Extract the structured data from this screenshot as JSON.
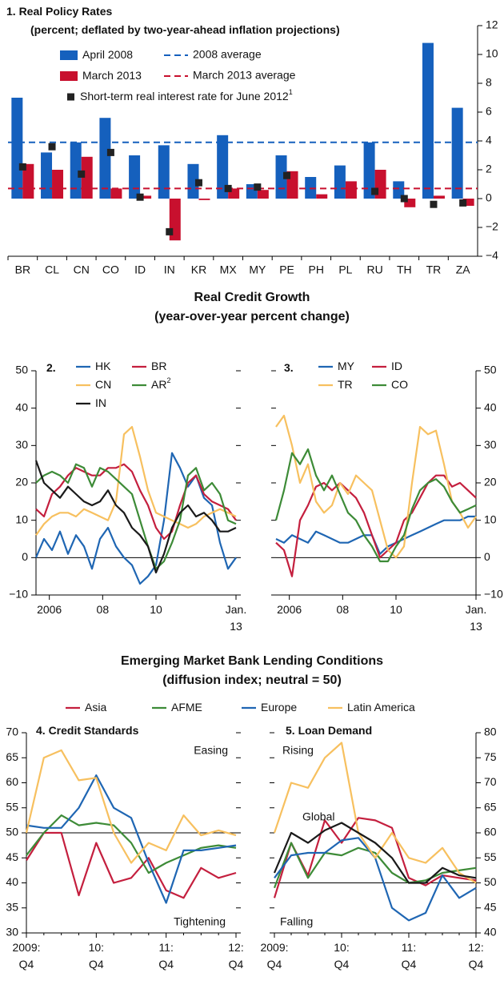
{
  "groups": [
    {
      "title": "Real Credit Growth",
      "subtitle": "(year-over-year percent change)"
    },
    {
      "title": "Emerging Market Bank Lending Conditions",
      "subtitle": "(diffusion index; neutral = 50)"
    }
  ],
  "chart_data": [
    {
      "type": "bar",
      "title": "1. Real Policy Rates",
      "subtitle": "(percent; deflated by two-year-ahead inflation projections)",
      "categories": [
        "BR",
        "CL",
        "CN",
        "CO",
        "ID",
        "IN",
        "KR",
        "MX",
        "MY",
        "PE",
        "PH",
        "PL",
        "RU",
        "TH",
        "TR",
        "ZA"
      ],
      "series": [
        {
          "name": "April 2008",
          "color": "#1560bd",
          "values": [
            7,
            3.2,
            3.9,
            5.6,
            3,
            3.7,
            2.4,
            4.4,
            1,
            3,
            1.5,
            2.3,
            3.9,
            1.2,
            10.8,
            6.3
          ]
        },
        {
          "name": "March 2013",
          "color": "#c8102e",
          "values": [
            2.4,
            2,
            2.9,
            0.7,
            0.2,
            -2.9,
            -0.1,
            0.7,
            0.6,
            1.9,
            0.3,
            1.2,
            2,
            -0.6,
            0.2,
            -0.5
          ]
        },
        {
          "name": "Short-term real interest rate for June 2012",
          "note_mark": "1",
          "type": "scatter",
          "color": "#222222",
          "values": [
            2.2,
            3.6,
            1.7,
            3.2,
            0.1,
            -2.3,
            1.1,
            0.7,
            0.8,
            1.6,
            null,
            null,
            0.5,
            0,
            -0.4,
            -0.3
          ]
        }
      ],
      "reference_lines": [
        {
          "name": "2008 average",
          "color": "#1560bd",
          "value": 3.9
        },
        {
          "name": "March 2013 average",
          "color": "#c8102e",
          "value": 0.7
        }
      ],
      "ylim": [
        -4,
        12
      ],
      "yticks": [
        {
          "value": -4,
          "label": "−4"
        },
        {
          "value": -2,
          "label": "−2"
        },
        0,
        2,
        4,
        6,
        8,
        10,
        12
      ]
    },
    {
      "type": "line",
      "panel_label": "2.",
      "x": [
        2005.5,
        2005.8,
        2006.1,
        2006.4,
        2006.7,
        2007,
        2007.3,
        2007.6,
        2007.9,
        2008.2,
        2008.5,
        2008.8,
        2009.1,
        2009.4,
        2009.7,
        2010,
        2010.3,
        2010.6,
        2010.9,
        2011.2,
        2011.5,
        2011.8,
        2012.1,
        2012.4,
        2012.7,
        2013
      ],
      "xlim": [
        2005.5,
        2013
      ],
      "xticks": [
        {
          "value": 2006,
          "label": "2006"
        },
        {
          "value": 2008,
          "label": "08"
        },
        {
          "value": 2010,
          "label": "10"
        },
        {
          "value": 2013,
          "label": "Jan.\n13"
        }
      ],
      "ylim": [
        -10,
        50
      ],
      "yticks": [
        {
          "value": -10,
          "label": "−10"
        },
        0,
        10,
        20,
        30,
        40,
        50
      ],
      "reference_lines": [
        {
          "color": "#000000",
          "value": 0
        }
      ],
      "series": [
        {
          "name": "HK",
          "color": "#1f66b3",
          "values": [
            0,
            5,
            2,
            7,
            1,
            6,
            3,
            -3,
            5,
            8,
            3,
            0,
            -2,
            -7,
            -5,
            -2,
            10,
            28,
            24,
            19,
            22,
            16,
            14,
            4,
            -3,
            0
          ]
        },
        {
          "name": "BR",
          "color": "#c41f3e",
          "values": [
            13,
            11,
            17,
            19,
            22,
            24,
            23,
            22,
            22,
            24,
            24,
            25,
            23,
            18,
            14,
            8,
            5,
            7,
            14,
            20,
            22,
            17,
            15,
            14,
            13,
            10
          ]
        },
        {
          "name": "CN",
          "color": "#f7c05f",
          "values": [
            6,
            9,
            11,
            12,
            12,
            11,
            13,
            12,
            11,
            10,
            15,
            33,
            35,
            27,
            18,
            12,
            11,
            10,
            9,
            8,
            9,
            11,
            12,
            13,
            12,
            11
          ]
        },
        {
          "name": "AR",
          "note_mark": "2",
          "color": "#3d8b37",
          "values": [
            20,
            22,
            23,
            22,
            20,
            25,
            24,
            19,
            24,
            23,
            21,
            19,
            17,
            10,
            3,
            -3,
            -1,
            4,
            10,
            22,
            24,
            18,
            20,
            17,
            10,
            9
          ]
        },
        {
          "name": "IN",
          "color": "#1a1a1a",
          "values": [
            26,
            20,
            18,
            16,
            19,
            17,
            15,
            14,
            15,
            18,
            14,
            12,
            8,
            6,
            3,
            -4,
            1,
            8,
            12,
            14,
            11,
            12,
            10,
            7,
            7,
            8
          ]
        }
      ]
    },
    {
      "type": "line",
      "panel_label": "3.",
      "x": [
        2005.5,
        2005.8,
        2006.1,
        2006.4,
        2006.7,
        2007,
        2007.3,
        2007.6,
        2007.9,
        2008.2,
        2008.5,
        2008.8,
        2009.1,
        2009.4,
        2009.7,
        2010,
        2010.3,
        2010.6,
        2010.9,
        2011.2,
        2011.5,
        2011.8,
        2012.1,
        2012.4,
        2012.7,
        2013
      ],
      "xlim": [
        2005.5,
        2013
      ],
      "xticks": [
        {
          "value": 2006,
          "label": "2006"
        },
        {
          "value": 2008,
          "label": "08"
        },
        {
          "value": 2010,
          "label": "10"
        },
        {
          "value": 2013,
          "label": "Jan.\n13"
        }
      ],
      "ylim": [
        -10,
        50
      ],
      "yticks": [
        {
          "value": -10,
          "label": "−10"
        },
        0,
        10,
        20,
        30,
        40,
        50
      ],
      "reference_lines": [
        {
          "color": "#000000",
          "value": 0
        }
      ],
      "series": [
        {
          "name": "MY",
          "color": "#1f66b3",
          "values": [
            5,
            4,
            6,
            5,
            4,
            7,
            6,
            5,
            4,
            4,
            5,
            6,
            6,
            1,
            3,
            4,
            5,
            6,
            7,
            8,
            9,
            10,
            10,
            10,
            11,
            11
          ]
        },
        {
          "name": "ID",
          "color": "#c41f3e",
          "values": [
            4,
            2,
            -5,
            10,
            14,
            19,
            20,
            18,
            20,
            18,
            16,
            12,
            6,
            0,
            2,
            4,
            10,
            12,
            16,
            20,
            22,
            22,
            19,
            20,
            18,
            16
          ]
        },
        {
          "name": "TR",
          "color": "#f7c05f",
          "values": [
            35,
            38,
            30,
            20,
            25,
            15,
            12,
            14,
            20,
            17,
            22,
            20,
            18,
            10,
            2,
            0,
            3,
            20,
            35,
            33,
            34,
            25,
            15,
            12,
            8,
            11
          ]
        },
        {
          "name": "CO",
          "color": "#3d8b37",
          "values": [
            10,
            18,
            28,
            25,
            29,
            22,
            18,
            22,
            17,
            12,
            10,
            6,
            3,
            -1,
            -1,
            3,
            6,
            13,
            18,
            20,
            21,
            19,
            15,
            12,
            13,
            14
          ]
        }
      ]
    },
    {
      "type": "line",
      "panel_label": "4. Credit Standards",
      "categories": [
        "2009:\nQ4",
        null,
        null,
        null,
        "10:\nQ4",
        null,
        null,
        null,
        "11:\nQ4",
        null,
        null,
        null,
        "12:\nQ4"
      ],
      "ylim": [
        30,
        70
      ],
      "yticks": [
        30,
        35,
        40,
        45,
        50,
        55,
        60,
        65,
        70
      ],
      "reference_lines": [
        {
          "color": "#000000",
          "value": 50
        }
      ],
      "annotations": [
        "Easing",
        "Tightening"
      ],
      "series": [
        {
          "name": "Asia",
          "color": "#c41f3e",
          "values": [
            44.5,
            50,
            50,
            37.5,
            48,
            40,
            41,
            45,
            38.5,
            37,
            43,
            41,
            42
          ]
        },
        {
          "name": "AFME",
          "color": "#3d8b37",
          "values": [
            45.5,
            50,
            53.5,
            51.5,
            52,
            51.5,
            48,
            42,
            44,
            45.5,
            47,
            47.5,
            47
          ]
        },
        {
          "name": "Europe",
          "color": "#1f66b3",
          "values": [
            51.5,
            51,
            51,
            55,
            61.5,
            55,
            53,
            44,
            36,
            46.5,
            46.5,
            47,
            47.5
          ]
        },
        {
          "name": "Latin America",
          "color": "#f7c05f",
          "values": [
            50,
            65,
            66.5,
            60.5,
            61,
            50,
            44,
            48,
            46.5,
            53.5,
            49.5,
            50.5,
            49.5
          ]
        }
      ]
    },
    {
      "type": "line",
      "panel_label": "5. Loan Demand",
      "categories": [
        "2009:\nQ4",
        null,
        null,
        null,
        "10:\nQ4",
        null,
        null,
        null,
        "11:\nQ4",
        null,
        null,
        null,
        "12:\nQ4"
      ],
      "ylim": [
        40,
        80
      ],
      "yticks": [
        40,
        45,
        50,
        55,
        60,
        65,
        70,
        75,
        80
      ],
      "reference_lines": [
        {
          "color": "#000000",
          "value": 50
        }
      ],
      "annotations": [
        "Rising",
        "Falling"
      ],
      "series": [
        {
          "color": "#c41f3e",
          "values": [
            47,
            58,
            51.5,
            62.5,
            58,
            63,
            62.5,
            61,
            51,
            49.5,
            51.5,
            51,
            50.5
          ]
        },
        {
          "color": "#3d8b37",
          "values": [
            49,
            58,
            51,
            56,
            55.5,
            57,
            56,
            52,
            50,
            50.5,
            52,
            52.5,
            53
          ]
        },
        {
          "color": "#1f66b3",
          "values": [
            51,
            55.5,
            56,
            56,
            58.5,
            59,
            55,
            45,
            42.5,
            44,
            51.5,
            47,
            49
          ]
        },
        {
          "color": "#f7c05f",
          "values": [
            60,
            70,
            69,
            75,
            78,
            60,
            55,
            60,
            55,
            54,
            57,
            52,
            50
          ]
        },
        {
          "name": "Global",
          "color": "#1a1a1a",
          "values": [
            52,
            60,
            58,
            60.5,
            62,
            60,
            58,
            55,
            50,
            50,
            53,
            51.5,
            51
          ]
        }
      ]
    }
  ]
}
